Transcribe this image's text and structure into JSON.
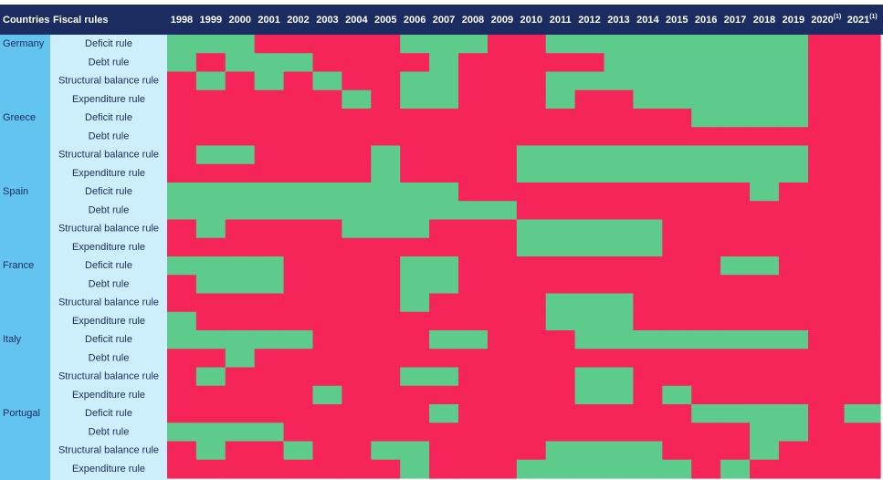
{
  "table": {
    "header": {
      "country": "Countries",
      "rule": "Fiscal rules",
      "years": [
        "1998",
        "1999",
        "2000",
        "2001",
        "2002",
        "2003",
        "2004",
        "2005",
        "2006",
        "2007",
        "2008",
        "2009",
        "2010",
        "2011",
        "2012",
        "2013",
        "2014",
        "2015",
        "2016",
        "2017",
        "2018",
        "2019",
        {
          "year": "2020",
          "note": "(1)"
        },
        {
          "year": "2021",
          "note": "(1)"
        }
      ]
    },
    "colors": {
      "1": "#5dcb8c",
      "0": "#f52559"
    },
    "groups": [
      {
        "country": "Germany",
        "rules": [
          {
            "name": "Deficit rule",
            "values": [
              1,
              1,
              1,
              0,
              0,
              0,
              0,
              0,
              1,
              1,
              1,
              0,
              0,
              1,
              1,
              1,
              1,
              1,
              1,
              1,
              1,
              1,
              0,
              0
            ]
          },
          {
            "name": "Debt rule",
            "values": [
              1,
              0,
              1,
              1,
              1,
              0,
              0,
              0,
              0,
              1,
              0,
              0,
              0,
              0,
              0,
              1,
              1,
              1,
              1,
              1,
              1,
              1,
              0,
              0
            ]
          },
          {
            "name": "Structural balance rule",
            "values": [
              0,
              1,
              0,
              1,
              0,
              1,
              0,
              0,
              1,
              1,
              0,
              0,
              0,
              1,
              1,
              1,
              1,
              1,
              1,
              1,
              1,
              1,
              0,
              0
            ]
          },
          {
            "name": "Expenditure rule",
            "values": [
              0,
              0,
              0,
              0,
              0,
              0,
              1,
              0,
              1,
              1,
              0,
              0,
              0,
              1,
              0,
              0,
              1,
              1,
              1,
              1,
              1,
              1,
              0,
              0
            ]
          }
        ]
      },
      {
        "country": "Greece",
        "rules": [
          {
            "name": "Deficit rule",
            "values": [
              0,
              0,
              0,
              0,
              0,
              0,
              0,
              0,
              0,
              0,
              0,
              0,
              0,
              0,
              0,
              0,
              0,
              0,
              1,
              1,
              1,
              1,
              0,
              0
            ]
          },
          {
            "name": "Debt rule",
            "values": [
              0,
              0,
              0,
              0,
              0,
              0,
              0,
              0,
              0,
              0,
              0,
              0,
              0,
              0,
              0,
              0,
              0,
              0,
              0,
              0,
              0,
              0,
              0,
              0
            ]
          },
          {
            "name": "Structural balance rule",
            "values": [
              0,
              1,
              1,
              0,
              0,
              0,
              0,
              1,
              0,
              0,
              0,
              0,
              1,
              1,
              1,
              1,
              1,
              1,
              1,
              1,
              1,
              1,
              0,
              0
            ]
          },
          {
            "name": "Expenditure rule",
            "values": [
              0,
              0,
              0,
              0,
              0,
              0,
              0,
              1,
              0,
              0,
              0,
              0,
              1,
              1,
              1,
              1,
              1,
              1,
              1,
              1,
              1,
              1,
              0,
              0
            ]
          }
        ]
      },
      {
        "country": "Spain",
        "rules": [
          {
            "name": "Deficit rule",
            "values": [
              1,
              1,
              1,
              1,
              1,
              1,
              1,
              1,
              1,
              1,
              0,
              0,
              0,
              0,
              0,
              0,
              0,
              0,
              0,
              0,
              1,
              0,
              0,
              0
            ]
          },
          {
            "name": "Debt rule",
            "values": [
              1,
              1,
              1,
              1,
              1,
              1,
              1,
              1,
              1,
              1,
              1,
              1,
              0,
              0,
              0,
              0,
              0,
              0,
              0,
              0,
              0,
              0,
              0,
              0
            ]
          },
          {
            "name": "Structural balance rule",
            "values": [
              0,
              1,
              0,
              0,
              0,
              0,
              1,
              1,
              1,
              0,
              0,
              0,
              1,
              1,
              1,
              1,
              1,
              0,
              0,
              0,
              0,
              0,
              0,
              0
            ]
          },
          {
            "name": "Expenditure rule",
            "values": [
              0,
              0,
              0,
              0,
              0,
              0,
              0,
              0,
              0,
              0,
              0,
              0,
              1,
              1,
              1,
              1,
              1,
              0,
              0,
              0,
              0,
              0,
              0,
              0
            ]
          }
        ]
      },
      {
        "country": "France",
        "rules": [
          {
            "name": "Deficit rule",
            "values": [
              1,
              1,
              1,
              1,
              0,
              0,
              0,
              0,
              1,
              1,
              0,
              0,
              0,
              0,
              0,
              0,
              0,
              0,
              0,
              1,
              1,
              0,
              0,
              0
            ]
          },
          {
            "name": "Debt rule",
            "values": [
              0,
              1,
              1,
              1,
              0,
              0,
              0,
              0,
              1,
              1,
              0,
              0,
              0,
              0,
              0,
              0,
              0,
              0,
              0,
              0,
              0,
              0,
              0,
              0
            ]
          },
          {
            "name": "Structural balance rule",
            "values": [
              0,
              0,
              0,
              0,
              0,
              0,
              0,
              0,
              1,
              0,
              0,
              0,
              0,
              1,
              1,
              1,
              0,
              0,
              0,
              0,
              0,
              0,
              0,
              0
            ]
          },
          {
            "name": "Expenditure rule",
            "values": [
              1,
              0,
              0,
              0,
              0,
              0,
              0,
              0,
              0,
              0,
              0,
              0,
              0,
              1,
              1,
              1,
              0,
              0,
              0,
              0,
              0,
              0,
              0,
              0
            ]
          }
        ]
      },
      {
        "country": "Italy",
        "rules": [
          {
            "name": "Deficit rule",
            "values": [
              1,
              1,
              1,
              1,
              1,
              0,
              0,
              0,
              0,
              1,
              1,
              0,
              0,
              0,
              1,
              1,
              1,
              1,
              1,
              1,
              1,
              1,
              0,
              0
            ]
          },
          {
            "name": "Debt rule",
            "values": [
              0,
              0,
              1,
              0,
              0,
              0,
              0,
              0,
              0,
              0,
              0,
              0,
              0,
              0,
              0,
              0,
              0,
              0,
              0,
              0,
              0,
              0,
              0,
              0
            ]
          },
          {
            "name": "Structural balance rule",
            "values": [
              0,
              1,
              0,
              0,
              0,
              0,
              0,
              0,
              1,
              1,
              0,
              0,
              0,
              0,
              1,
              1,
              0,
              0,
              0,
              0,
              0,
              0,
              0,
              0
            ]
          },
          {
            "name": "Expenditure rule",
            "values": [
              0,
              0,
              0,
              0,
              0,
              1,
              0,
              0,
              0,
              0,
              0,
              0,
              0,
              0,
              1,
              1,
              0,
              1,
              0,
              0,
              0,
              0,
              0,
              0
            ]
          }
        ]
      },
      {
        "country": "Portugal",
        "rules": [
          {
            "name": "Deficit rule",
            "values": [
              0,
              0,
              0,
              0,
              0,
              0,
              0,
              0,
              0,
              1,
              0,
              0,
              0,
              0,
              0,
              0,
              0,
              0,
              1,
              1,
              1,
              1,
              0,
              1
            ]
          },
          {
            "name": "Debt rule",
            "values": [
              1,
              1,
              1,
              1,
              0,
              0,
              0,
              0,
              0,
              0,
              0,
              0,
              0,
              0,
              0,
              0,
              0,
              0,
              0,
              0,
              1,
              1,
              0,
              0
            ]
          },
          {
            "name": "Structural balance rule",
            "values": [
              0,
              1,
              0,
              0,
              1,
              0,
              0,
              1,
              1,
              0,
              0,
              0,
              0,
              1,
              1,
              1,
              1,
              0,
              0,
              0,
              1,
              0,
              0,
              0
            ]
          },
          {
            "name": "Expenditure rule",
            "values": [
              0,
              0,
              0,
              0,
              0,
              0,
              0,
              0,
              1,
              0,
              0,
              0,
              1,
              1,
              1,
              1,
              1,
              1,
              0,
              1,
              0,
              0,
              0,
              0
            ]
          }
        ]
      }
    ]
  }
}
